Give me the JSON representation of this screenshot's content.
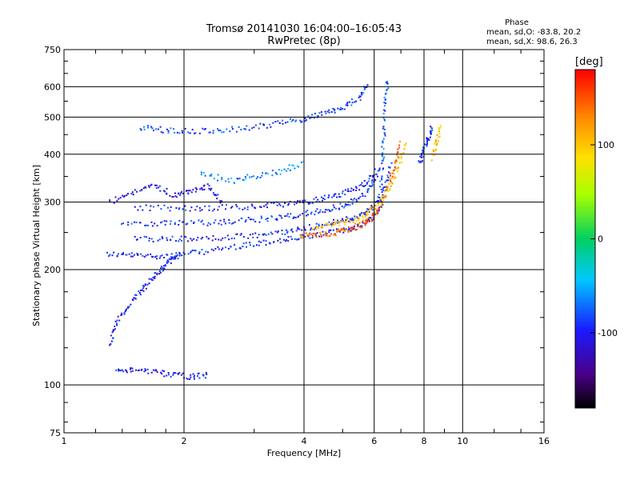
{
  "chart_data": {
    "type": "scatter",
    "title": "Tromsø 20141030 16:04:00–16:05:43",
    "subtitle": "RwPretec (8p)",
    "xlabel": "Frequency [MHz]",
    "ylabel": "Stationary phase Virtual Height [km]",
    "x_scale": "log",
    "y_scale": "log",
    "xlim": [
      1,
      16
    ],
    "ylim": [
      75,
      750
    ],
    "x_ticks": [
      1,
      2,
      4,
      6,
      8,
      10,
      16
    ],
    "x_tick_labels": [
      "1",
      "2",
      "4",
      "6",
      "8",
      "10",
      "16"
    ],
    "y_ticks": [
      75,
      100,
      200,
      300,
      400,
      500,
      600,
      750
    ],
    "y_tick_labels": [
      "75",
      "100",
      "200",
      "300",
      "400",
      "500",
      "600",
      "750"
    ],
    "grid": true,
    "stats": {
      "heading": "Phase",
      "line_o": "mean, sd,O: -83.8, 20.2",
      "line_x": "mean, sd,X:  98.6, 26.3"
    },
    "colorbar": {
      "label": "[deg]",
      "range": [
        -180,
        180
      ],
      "ticks": [
        100,
        0,
        -100
      ],
      "tick_labels": [
        "100",
        "0",
        "-100"
      ]
    },
    "traces": [
      {
        "x": [
          1.28,
          1.45,
          1.65,
          1.9,
          2.2,
          2.6,
          3.0,
          3.5,
          4.0,
          4.5,
          5.0,
          5.5,
          5.9,
          6.2,
          6.4,
          6.6
        ],
        "y": [
          220,
          218,
          217,
          218,
          222,
          228,
          233,
          238,
          243,
          248,
          253,
          260,
          270,
          290,
          330,
          380
        ],
        "phase": -95
      },
      {
        "x": [
          1.5,
          1.8,
          2.1,
          2.5,
          3.0,
          3.5,
          4.0,
          4.5,
          5.0,
          5.5,
          5.9,
          6.2
        ],
        "y": [
          240,
          240,
          240,
          242,
          245,
          250,
          256,
          262,
          268,
          276,
          288,
          310
        ],
        "phase": -95
      },
      {
        "x": [
          1.4,
          1.7,
          2.0,
          2.4,
          2.8,
          3.3,
          3.8,
          4.3,
          4.8,
          5.3,
          5.8,
          6.1
        ],
        "y": [
          265,
          264,
          264,
          265,
          268,
          272,
          277,
          283,
          290,
          300,
          320,
          350
        ],
        "phase": -90
      },
      {
        "x": [
          1.5,
          1.9,
          2.3,
          2.8,
          3.3,
          3.8,
          4.3,
          4.8,
          5.3,
          5.8,
          6.2
        ],
        "y": [
          290,
          289,
          289,
          291,
          294,
          298,
          304,
          312,
          322,
          340,
          370
        ],
        "phase": -95
      },
      {
        "x": [
          3.9,
          4.3,
          4.8,
          5.2,
          5.6,
          5.9,
          6.2,
          6.5,
          6.8,
          7.0
        ],
        "y": [
          245,
          245,
          250,
          255,
          262,
          272,
          290,
          330,
          380,
          430
        ],
        "phase": 140
      },
      {
        "x": [
          4.2,
          4.7,
          5.2,
          5.7,
          6.1,
          6.5,
          6.9,
          7.2
        ],
        "y": [
          258,
          262,
          268,
          278,
          295,
          325,
          370,
          430
        ],
        "phase": 100
      },
      {
        "x": [
          1.55,
          1.8,
          2.1,
          2.5,
          3.0,
          3.5,
          4.0,
          4.5,
          5.0,
          5.5,
          5.8
        ],
        "y": [
          470,
          462,
          460,
          462,
          470,
          482,
          495,
          510,
          530,
          560,
          610
        ],
        "phase": -85
      },
      {
        "x": [
          6.2,
          6.3,
          6.35,
          6.4,
          6.5
        ],
        "y": [
          300,
          380,
          450,
          550,
          630
        ],
        "phase": -80
      },
      {
        "x": [
          7.8,
          8.0,
          8.2,
          8.4
        ],
        "y": [
          380,
          410,
          440,
          470
        ],
        "phase": -95
      },
      {
        "x": [
          8.4,
          8.6,
          8.8
        ],
        "y": [
          390,
          430,
          470
        ],
        "phase": 100
      },
      {
        "x": [
          1.3,
          1.35,
          1.45,
          1.55,
          1.65,
          1.75,
          1.85,
          1.95
        ],
        "y": [
          128,
          145,
          160,
          175,
          188,
          200,
          210,
          220
        ],
        "phase": -100
      },
      {
        "x": [
          1.35,
          1.5,
          1.7,
          1.9,
          2.1,
          2.3
        ],
        "y": [
          108,
          110,
          108,
          106,
          105,
          106
        ],
        "phase": -100
      },
      {
        "x": [
          1.3,
          1.5,
          1.7,
          1.9,
          2.1,
          2.3,
          2.5
        ],
        "y": [
          300,
          320,
          330,
          310,
          320,
          330,
          300
        ],
        "phase": -110
      },
      {
        "x": [
          2.2,
          2.6,
          3.0,
          3.5,
          4.0
        ],
        "y": [
          360,
          340,
          350,
          360,
          380
        ],
        "phase": -60
      }
    ]
  }
}
